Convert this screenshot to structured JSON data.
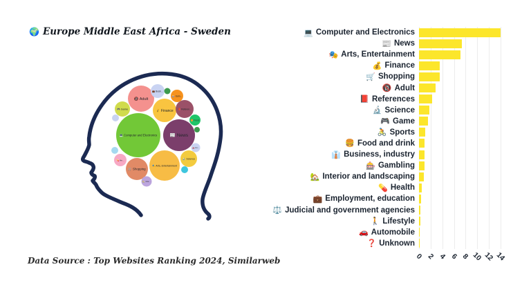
{
  "title": {
    "icon": "🌍",
    "text": "Europe Middle East Africa - Sweden"
  },
  "footer": "Data Source : Top Websites Ranking 2024, Similarweb",
  "colors": {
    "bar_fill": "#FCE62B",
    "head_outline": "#1B2A52",
    "gridline": "#ECECEC",
    "label_text": "#1B2430"
  },
  "chart_data": [
    {
      "type": "bar",
      "orientation": "horizontal",
      "title": "",
      "xlabel": "",
      "ylabel": "",
      "grid": "vertical",
      "legend": false,
      "xticks": [
        0,
        2,
        4,
        6,
        8,
        10,
        12,
        14
      ],
      "xlim": [
        0,
        15.4
      ],
      "categories": [
        "Computer and Electronics",
        "News",
        "Arts, Entertainment",
        "Finance",
        "Shopping",
        "Adult",
        "References",
        "Science",
        "Game",
        "Sports",
        "Food and drink",
        "Business, industry",
        "Gambling",
        "Interior and landscaping",
        "Health",
        "Employment, education",
        "Judicial and government agencies",
        "Lifestyle",
        "Automobile",
        "Unknown"
      ],
      "icons": [
        "💻",
        "📰",
        "🎭",
        "💰",
        "🛒",
        "🔞",
        "📕",
        "🔬",
        "🎮",
        "🚴",
        "🍔",
        "👔",
        "🎰",
        "🏡",
        "💊",
        "💼",
        "⚖️",
        "🚶",
        "🚗",
        "❓"
      ],
      "values": [
        14.0,
        7.3,
        7.1,
        3.6,
        3.6,
        2.8,
        2.2,
        1.8,
        1.5,
        1.1,
        1.0,
        0.95,
        0.9,
        0.85,
        0.5,
        0.3,
        0.2,
        0.2,
        0.12,
        0.1
      ]
    },
    {
      "type": "bubble",
      "title": "",
      "note": "category bubbles packed inside a head silhouette, radius ~ share",
      "bubbles": [
        {
          "label": "🔞 Adult",
          "cx": 99,
          "cy": 55,
          "r": 19,
          "color": "#F4918E",
          "fs": 5.5
        },
        {
          "label": "💼 Busin...",
          "cx": 123,
          "cy": 44,
          "r": 10,
          "color": "#C9D3F2",
          "fs": 3.2
        },
        {
          "label": "",
          "cx": 137,
          "cy": 44,
          "r": 4.5,
          "color": "#3D9A4E",
          "fs": 0
        },
        {
          "label": "🎰 Gam...",
          "cx": 151,
          "cy": 51,
          "r": 9,
          "color": "#F6921E",
          "fs": 3.2
        },
        {
          "label": "🎮 Game",
          "cx": 72,
          "cy": 70,
          "r": 11,
          "color": "#D0DB4D",
          "fs": 3.8
        },
        {
          "label": "💰 Finance",
          "cx": 133,
          "cy": 72,
          "r": 17,
          "color": "#F9C440",
          "fs": 5
        },
        {
          "label": "📕 Referen...",
          "cx": 162,
          "cy": 70,
          "r": 13,
          "color": "#9B5168",
          "fs": 3.4
        },
        {
          "label": "",
          "cx": 62,
          "cy": 83,
          "r": 5,
          "color": "#C9D3F2",
          "fs": 0
        },
        {
          "label": "🍔 Food.",
          "cx": 177,
          "cy": 86,
          "r": 8,
          "color": "#1FC568",
          "fs": 3.2
        },
        {
          "label": "",
          "cx": 180,
          "cy": 100,
          "r": 4,
          "color": "#3D9A4E",
          "fs": 0
        },
        {
          "label": "💻 Computer and Electronics",
          "cx": 95,
          "cy": 108,
          "r": 32,
          "color": "#72C837",
          "fs": 4.2
        },
        {
          "label": "📰 News",
          "cx": 154,
          "cy": 108,
          "r": 23,
          "color": "#7B3E6B",
          "fs": 6.5
        },
        {
          "label": "🚗 Au...",
          "cx": 178,
          "cy": 126,
          "r": 6.5,
          "color": "#C9D3F2",
          "fs": 2.8
        },
        {
          "label": "",
          "cx": 61,
          "cy": 130,
          "r": 5,
          "color": "#A5D9F0",
          "fs": 0
        },
        {
          "label": "💊 He...",
          "cx": 69,
          "cy": 144,
          "r": 9,
          "color": "#F7A9C4",
          "fs": 3
        },
        {
          "label": "🔬 Science",
          "cx": 168,
          "cy": 142,
          "r": 12,
          "color": "#F3CB3F",
          "fs": 3.6
        },
        {
          "label": "",
          "cx": 162,
          "cy": 158,
          "r": 5,
          "color": "#3EC6DE",
          "fs": 0
        },
        {
          "label": "🎭 Arts, Entertainment",
          "cx": 133,
          "cy": 152,
          "r": 22,
          "color": "#F7BC45",
          "fs": 3.6
        },
        {
          "label": "🛒 Shopping",
          "cx": 93,
          "cy": 157,
          "r": 16,
          "color": "#E18A66",
          "fs": 4.4
        },
        {
          "label": "🏡 Inte...",
          "cx": 107,
          "cy": 175,
          "r": 7.5,
          "color": "#BCA5DE",
          "fs": 2.8
        }
      ]
    }
  ]
}
